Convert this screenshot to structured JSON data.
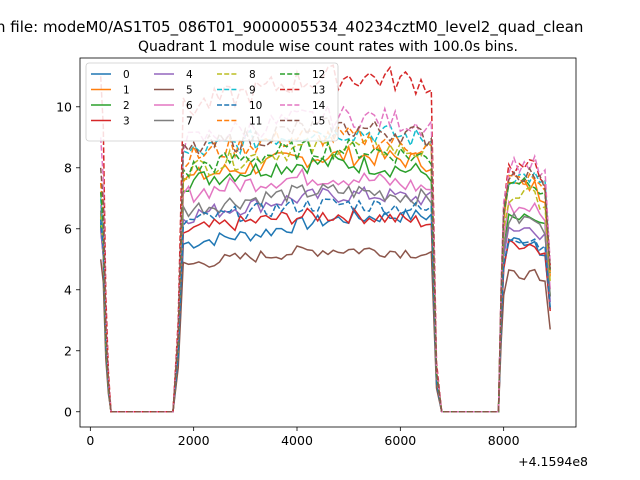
{
  "page": {
    "suptitle": "n file: modeM0/AS1T05_086T01_9000005534_40234cztM0_level2_quad_clean"
  },
  "chart_data": {
    "type": "line",
    "title": "Quadrant 1 module wise count rates with 100.0s bins.",
    "xlabel": "",
    "ylabel": "",
    "x_offset_label": "+4.1594e8",
    "xlim": [
      -200,
      9400
    ],
    "ylim": [
      -0.5,
      11.6
    ],
    "xticks": [
      0,
      2000,
      4000,
      6000,
      8000
    ],
    "yticks": [
      0,
      2,
      4,
      6,
      8,
      10
    ],
    "legend": {
      "placement": "top-left",
      "columns": 4
    },
    "colors": [
      "#1f77b4",
      "#ff7f0e",
      "#2ca02c",
      "#d62728",
      "#9467bd",
      "#8c564b",
      "#e377c2",
      "#7f7f7f",
      "#bcbd22",
      "#17becf",
      "#1f77b4",
      "#ff7f0e",
      "#2ca02c",
      "#d62728",
      "#e377c2",
      "#8c564b"
    ],
    "segments_profile": {
      "note_x_start": 200,
      "x_step": 100,
      "phase1": {
        "x": [
          200,
          250,
          300,
          350,
          400
        ]
      },
      "gap1": {
        "x": [
          400,
          1600
        ],
        "value": 0
      },
      "phase2": {
        "x_start": 1600,
        "x_end": 6700
      },
      "gap2": {
        "x": [
          6800,
          7900
        ],
        "value": 0
      },
      "phase3": {
        "x_start": 7950,
        "x_end": 8900
      }
    },
    "series": [
      {
        "name": "0",
        "style": "solid",
        "start": 6.2,
        "level": 5.5,
        "end_level": 6.5,
        "late": 5.6
      },
      {
        "name": "1",
        "style": "solid",
        "start": 6.5,
        "level": 7.6,
        "end_level": 8.2,
        "late": 7.4
      },
      {
        "name": "2",
        "style": "solid",
        "start": 6.1,
        "level": 7.5,
        "end_level": 7.8,
        "late": 6.3
      },
      {
        "name": "3",
        "style": "solid",
        "start": 6.0,
        "level": 5.9,
        "end_level": 6.2,
        "late": 5.5
      },
      {
        "name": "4",
        "style": "solid",
        "start": 6.0,
        "level": 6.4,
        "end_level": 7.0,
        "late": 6.0
      },
      {
        "name": "5",
        "style": "solid",
        "start": 5.0,
        "level": 4.8,
        "end_level": 5.2,
        "late": 4.5
      },
      {
        "name": "6",
        "style": "solid",
        "start": 6.8,
        "level": 7.1,
        "end_level": 7.3,
        "late": 6.7
      },
      {
        "name": "7",
        "style": "solid",
        "start": 6.6,
        "level": 6.6,
        "end_level": 7.0,
        "late": 6.3
      },
      {
        "name": "8",
        "style": "dashed",
        "start": 6.4,
        "level": 7.9,
        "end_level": 8.5,
        "late": 7.1
      },
      {
        "name": "9",
        "style": "dashed",
        "start": 7.0,
        "level": 8.4,
        "end_level": 8.9,
        "late": 7.7
      },
      {
        "name": "10",
        "style": "dashed",
        "start": 6.3,
        "level": 6.2,
        "end_level": 6.6,
        "late": 5.7
      },
      {
        "name": "11",
        "style": "dashed",
        "start": 7.5,
        "level": 8.3,
        "end_level": 8.6,
        "late": 7.6
      },
      {
        "name": "12",
        "style": "dashed",
        "start": 7.2,
        "level": 7.9,
        "end_level": 8.3,
        "late": 7.6
      },
      {
        "name": "13",
        "style": "dashed",
        "start": 11.0,
        "level": 9.9,
        "end_level": 10.8,
        "late": 8.0
      },
      {
        "name": "14",
        "style": "dashed",
        "start": 9.0,
        "level": 8.8,
        "end_level": 9.4,
        "late": 8.1
      },
      {
        "name": "15",
        "style": "dashed",
        "start": 8.0,
        "level": 8.5,
        "end_level": 9.0,
        "late": 7.8
      }
    ]
  }
}
